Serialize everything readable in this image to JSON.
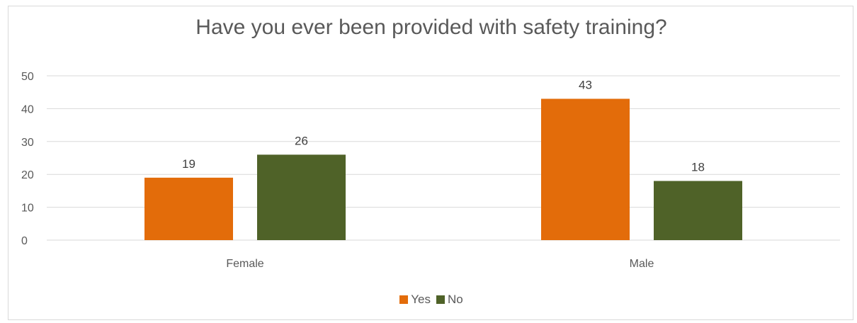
{
  "chart_data": {
    "type": "bar",
    "title": "Have you ever been provided with safety training?",
    "categories": [
      "Female",
      "Male"
    ],
    "series": [
      {
        "name": "Yes",
        "color": "#e36c0a",
        "values": [
          19,
          43
        ]
      },
      {
        "name": "No",
        "color": "#4f6228",
        "values": [
          26,
          18
        ]
      }
    ],
    "ylim": [
      0,
      50
    ],
    "yticks": [
      0,
      10,
      20,
      30,
      40,
      50
    ],
    "grid": true,
    "legend": "bottom"
  }
}
